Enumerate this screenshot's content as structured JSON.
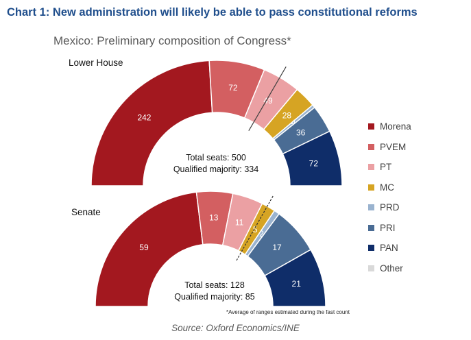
{
  "heading": "Chart 1: New administration will likely be able to pass constitutional reforms",
  "chart_data": {
    "type": "pie",
    "subtitle": "Mexico: Preliminary composition of Congress*",
    "parties": [
      {
        "name": "Morena",
        "color": "#a3181f"
      },
      {
        "name": "PVEM",
        "color": "#d35f61"
      },
      {
        "name": "PT",
        "color": "#eba0a3"
      },
      {
        "name": "MC",
        "color": "#d6a423"
      },
      {
        "name": "PRD",
        "color": "#9ab3cf"
      },
      {
        "name": "PRI",
        "color": "#4a6c94"
      },
      {
        "name": "PAN",
        "color": "#0f2d69"
      },
      {
        "name": "Other",
        "color": "#d9d9d9"
      }
    ],
    "chambers": [
      {
        "name": "Lower House",
        "seats": [
          242,
          72,
          49,
          28,
          4,
          36,
          72,
          0
        ],
        "total_text": "Total seats: 500",
        "majority_text": "Qualified majority: 334",
        "total": 500,
        "majority": 334
      },
      {
        "name": "Senate",
        "seats": [
          59,
          13,
          11,
          5,
          2,
          17,
          21,
          0
        ],
        "total_text": "Total seats: 128",
        "majority_text": "Qualified majority: 85",
        "total": 128,
        "majority": 85
      }
    ]
  },
  "footnote": "*Average of ranges estimated during the fast count",
  "source": "Source: Oxford Economics/INE"
}
